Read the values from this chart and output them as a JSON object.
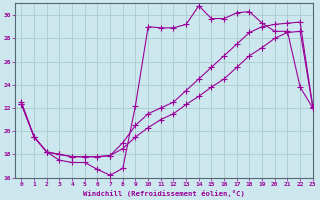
{
  "xlabel": "Windchill (Refroidissement éolien,°C)",
  "bg_color": "#cce8ee",
  "line_color": "#990099",
  "grid_color": "#aacccc",
  "xlim": [
    -0.5,
    23
  ],
  "ylim": [
    16,
    31
  ],
  "yticks": [
    16,
    18,
    20,
    22,
    24,
    26,
    28,
    30
  ],
  "xticks": [
    0,
    1,
    2,
    3,
    4,
    5,
    6,
    7,
    8,
    9,
    10,
    11,
    12,
    13,
    14,
    15,
    16,
    17,
    18,
    19,
    20,
    21,
    22,
    23
  ],
  "series1_x": [
    0,
    1,
    2,
    3,
    4,
    5,
    6,
    7,
    8,
    9,
    10,
    11,
    12,
    13,
    14,
    15,
    16,
    17,
    18,
    19,
    20,
    21,
    22,
    23
  ],
  "series1_y": [
    22.5,
    19.5,
    18.2,
    17.5,
    17.3,
    17.3,
    16.7,
    16.2,
    16.8,
    22.2,
    29.0,
    28.9,
    28.9,
    29.2,
    30.8,
    29.7,
    29.7,
    30.2,
    30.3,
    29.3,
    28.6,
    28.6,
    23.8,
    22.0
  ],
  "series2_x": [
    0,
    1,
    2,
    3,
    4,
    5,
    6,
    7,
    8,
    9,
    10,
    11,
    12,
    13,
    14,
    15,
    16,
    17,
    18,
    19,
    20,
    21,
    22,
    23
  ],
  "series2_y": [
    22.3,
    19.5,
    18.2,
    18.0,
    17.8,
    17.8,
    17.8,
    17.9,
    18.5,
    19.5,
    20.3,
    21.0,
    21.5,
    22.3,
    23.0,
    23.8,
    24.5,
    25.5,
    26.5,
    27.2,
    28.0,
    28.5,
    28.6,
    22.1
  ],
  "series3_x": [
    0,
    1,
    2,
    3,
    4,
    5,
    6,
    7,
    8,
    9,
    10,
    11,
    12,
    13,
    14,
    15,
    16,
    17,
    18,
    19,
    20,
    21,
    22,
    23
  ],
  "series3_y": [
    22.3,
    19.5,
    18.2,
    18.0,
    17.8,
    17.8,
    17.8,
    17.9,
    19.0,
    20.5,
    21.5,
    22.0,
    22.5,
    23.5,
    24.5,
    25.5,
    26.5,
    27.5,
    28.5,
    29.0,
    29.2,
    29.3,
    29.4,
    22.1
  ]
}
